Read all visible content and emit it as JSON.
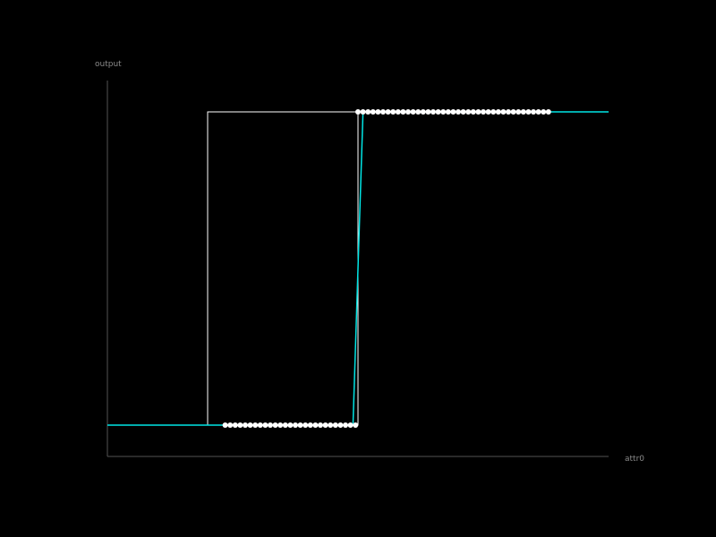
{
  "chart_data": {
    "type": "line",
    "title": "",
    "xlabel": "attr0",
    "ylabel": "output",
    "xlim": [
      -1.0,
      1.0
    ],
    "ylim": [
      -0.1,
      1.1
    ],
    "grid": false,
    "colors": {
      "background": "#000000",
      "axis": "#555555",
      "label": "#8a8a8a",
      "points": "#ffffff",
      "fit": "#00e5e5",
      "bounds": "#ffffff"
    },
    "series": [
      {
        "type": "scatter",
        "x": [
          -0.53,
          -0.51,
          -0.49,
          -0.47,
          -0.45,
          -0.43,
          -0.41,
          -0.39,
          -0.37,
          -0.35,
          -0.33,
          -0.31,
          -0.29,
          -0.27,
          -0.25,
          -0.23,
          -0.21,
          -0.19,
          -0.17,
          -0.15,
          -0.13,
          -0.11,
          -0.09,
          -0.07,
          -0.05,
          -0.03,
          -0.01,
          0.0,
          0.02,
          0.04,
          0.06,
          0.08,
          0.1,
          0.12,
          0.14,
          0.16,
          0.18,
          0.2,
          0.22,
          0.24,
          0.26,
          0.28,
          0.3,
          0.32,
          0.34,
          0.36,
          0.38,
          0.4,
          0.42,
          0.44,
          0.46,
          0.48,
          0.5,
          0.52,
          0.54,
          0.56,
          0.58,
          0.6,
          0.62,
          0.64,
          0.66,
          0.68,
          0.7,
          0.72,
          0.74,
          0.76
        ],
        "y": [
          0,
          0,
          0,
          0,
          0,
          0,
          0,
          0,
          0,
          0,
          0,
          0,
          0,
          0,
          0,
          0,
          0,
          0,
          0,
          0,
          0,
          0,
          0,
          0,
          0,
          0,
          0,
          1,
          1,
          1,
          1,
          1,
          1,
          1,
          1,
          1,
          1,
          1,
          1,
          1,
          1,
          1,
          1,
          1,
          1,
          1,
          1,
          1,
          1,
          1,
          1,
          1,
          1,
          1,
          1,
          1,
          1,
          1,
          1,
          1,
          1,
          1,
          1,
          1,
          1,
          1
        ]
      },
      {
        "type": "line",
        "x": [
          -1.0,
          -0.02,
          0.02,
          1.0
        ],
        "y": [
          0,
          0,
          1,
          1
        ]
      },
      {
        "type": "bounds",
        "x": [
          -0.6,
          -0.6,
          0.0,
          0.0,
          -0.6
        ],
        "y": [
          0,
          1,
          1,
          0,
          0
        ]
      }
    ]
  }
}
